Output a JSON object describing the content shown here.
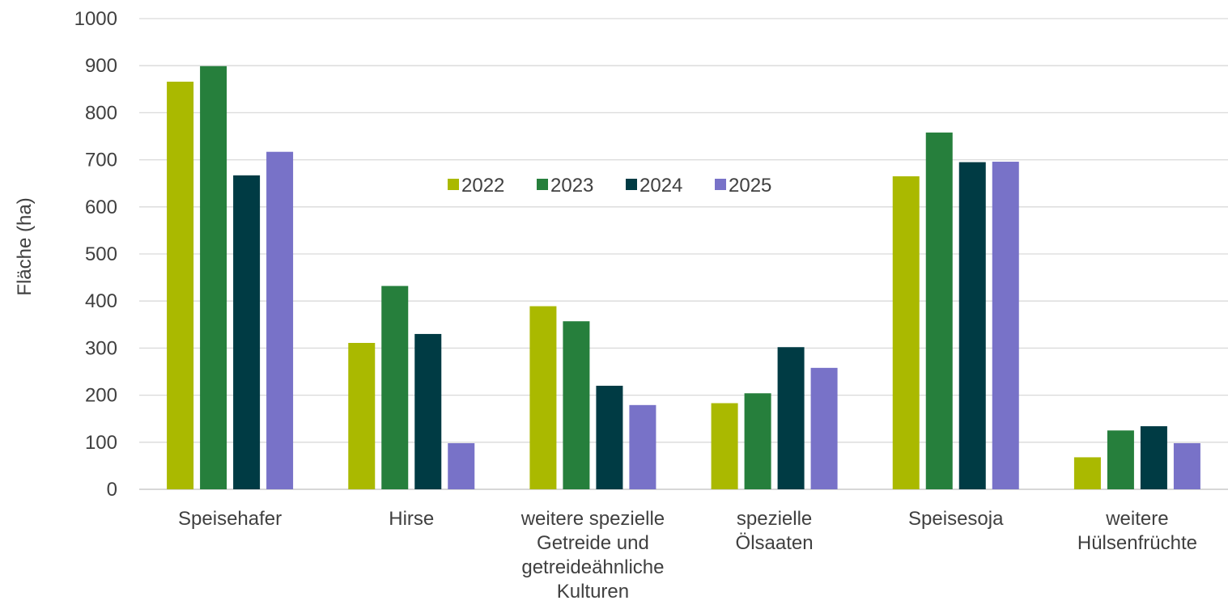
{
  "chart_data": {
    "type": "bar",
    "title": "",
    "xlabel": "",
    "ylabel": "Fläche (ha)",
    "ylim": [
      0,
      1000
    ],
    "ytick_step": 100,
    "grid": true,
    "legend_position": "top-center",
    "categories": [
      [
        "Speisehafer"
      ],
      [
        "Hirse"
      ],
      [
        "weitere spezielle",
        "Getreide und",
        "getreideähnliche",
        "Kulturen"
      ],
      [
        "spezielle",
        "Ölsaaten"
      ],
      [
        "Speisesoja"
      ],
      [
        "weitere",
        "Hülsenfrüchte"
      ]
    ],
    "series": [
      {
        "name": "2022",
        "color": "#aab900",
        "values": [
          866,
          311,
          389,
          183,
          665,
          68
        ]
      },
      {
        "name": "2023",
        "color": "#267f3c",
        "values": [
          899,
          432,
          357,
          204,
          758,
          125
        ]
      },
      {
        "name": "2024",
        "color": "#003b44",
        "values": [
          667,
          330,
          220,
          302,
          695,
          134
        ]
      },
      {
        "name": "2025",
        "color": "#7872c8",
        "values": [
          717,
          98,
          179,
          258,
          696,
          98
        ]
      }
    ]
  }
}
